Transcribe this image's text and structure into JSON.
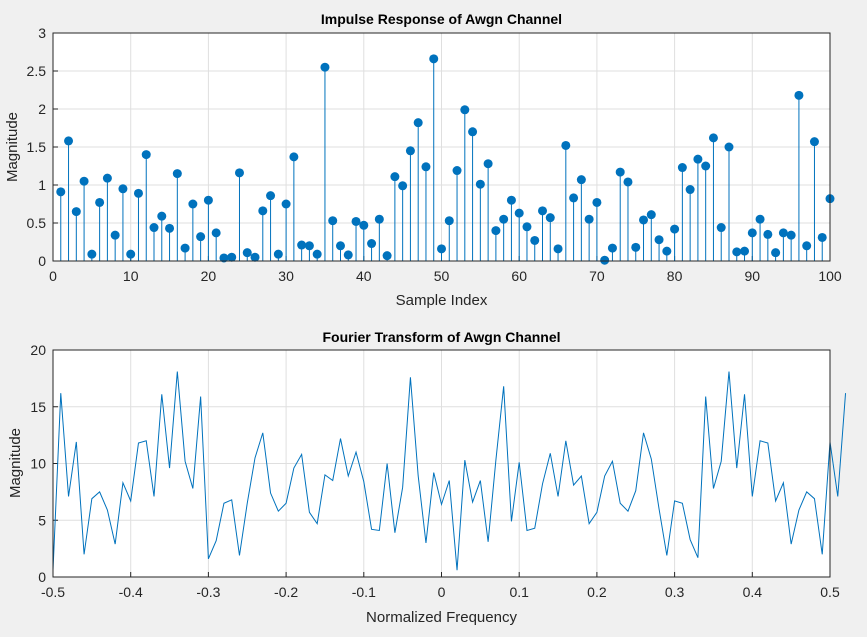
{
  "figure": {
    "background": "#f0f0f0",
    "axes_background": "#ffffff",
    "grid_color": "#dfdfdf",
    "axis_color": "#262626"
  },
  "chart_data": [
    {
      "type": "stem",
      "title": "Impulse Response of Awgn Channel",
      "xlabel": "Sample Index",
      "ylabel": "Magnitude",
      "xlim": [
        0,
        100
      ],
      "ylim": [
        0,
        3
      ],
      "xticks": [
        "0",
        "10",
        "20",
        "30",
        "40",
        "50",
        "60",
        "70",
        "80",
        "90",
        "100"
      ],
      "yticks": [
        "0",
        "0.5",
        "1",
        "1.5",
        "2",
        "2.5",
        "3"
      ],
      "grid": true,
      "color": "#0072bd",
      "x": [
        1,
        2,
        3,
        4,
        5,
        6,
        7,
        8,
        9,
        10,
        11,
        12,
        13,
        14,
        15,
        16,
        17,
        18,
        19,
        20,
        21,
        22,
        23,
        24,
        25,
        26,
        27,
        28,
        29,
        30,
        31,
        32,
        33,
        34,
        35,
        36,
        37,
        38,
        39,
        40,
        41,
        42,
        43,
        44,
        45,
        46,
        47,
        48,
        49,
        50,
        51,
        52,
        53,
        54,
        55,
        56,
        57,
        58,
        59,
        60,
        61,
        62,
        63,
        64,
        65,
        66,
        67,
        68,
        69,
        70,
        71,
        72,
        73,
        74,
        75,
        76,
        77,
        78,
        79,
        80,
        81,
        82,
        83,
        84,
        85,
        86,
        87,
        88,
        89,
        90,
        91,
        92,
        93,
        94,
        95,
        96,
        97,
        98,
        99,
        100
      ],
      "values": [
        0.91,
        1.58,
        0.65,
        1.05,
        0.09,
        0.77,
        1.09,
        0.34,
        0.95,
        0.09,
        0.89,
        1.4,
        0.44,
        0.59,
        0.43,
        1.15,
        0.17,
        0.75,
        0.32,
        0.8,
        0.37,
        0.04,
        0.05,
        1.16,
        0.11,
        0.05,
        0.66,
        0.86,
        0.09,
        0.75,
        1.37,
        0.21,
        0.2,
        0.09,
        2.55,
        0.53,
        0.2,
        0.08,
        0.52,
        0.47,
        0.23,
        0.55,
        0.07,
        1.11,
        0.99,
        1.45,
        1.82,
        1.24,
        2.66,
        0.16,
        0.53,
        1.19,
        1.99,
        1.7,
        1.01,
        1.28,
        0.4,
        0.55,
        0.8,
        0.63,
        0.45,
        0.27,
        0.66,
        0.57,
        0.16,
        1.52,
        0.83,
        1.07,
        0.55,
        0.77,
        0.01,
        0.17,
        1.17,
        1.04,
        0.18,
        0.54,
        0.61,
        0.28,
        0.13,
        0.42,
        1.23,
        0.94,
        1.34,
        1.25,
        1.62,
        0.44,
        1.5,
        0.12,
        0.13,
        0.37,
        0.55,
        0.35,
        0.11,
        0.37,
        0.34,
        2.18,
        0.2,
        1.57,
        0.31,
        0.82
      ]
    },
    {
      "type": "line",
      "title": "Fourier Transform of Awgn Channel",
      "xlabel": "Normalized Frequency",
      "ylabel": "Magnitude",
      "xlim": [
        -0.5,
        0.5
      ],
      "ylim": [
        0,
        20
      ],
      "xticks": [
        "-0.5",
        "-0.4",
        "-0.3",
        "-0.2",
        "-0.1",
        "0",
        "0.1",
        "0.2",
        "0.3",
        "0.4",
        "0.5"
      ],
      "yticks": [
        "0",
        "5",
        "10",
        "15",
        "20"
      ],
      "grid": true,
      "color": "#0072bd",
      "x_start": -0.5,
      "x_step": 0.01,
      "values": [
        0.6,
        16.2,
        7.1,
        11.9,
        2.0,
        6.9,
        7.5,
        5.9,
        2.9,
        8.3,
        6.7,
        11.8,
        12.0,
        7.1,
        16.1,
        9.6,
        18.1,
        10.2,
        7.8,
        15.9,
        1.6,
        3.2,
        6.5,
        6.8,
        1.9,
        6.5,
        10.5,
        12.7,
        7.4,
        5.8,
        6.5,
        9.6,
        10.8,
        5.7,
        4.7,
        9.0,
        8.5,
        12.2,
        8.9,
        11.0,
        8.4,
        4.2,
        4.1,
        10.0,
        3.9,
        7.9,
        17.6,
        8.9,
        3.0,
        9.2,
        6.4,
        8.5,
        0.6,
        10.3,
        6.6,
        8.5,
        3.1,
        10.3,
        16.8,
        4.9,
        10.1,
        4.1,
        4.3,
        8.2,
        10.9,
        7.1,
        12.0,
        8.1,
        8.9,
        4.7,
        5.7,
        8.9,
        10.2,
        6.5,
        5.8,
        7.6,
        12.7,
        10.4,
        6.0,
        1.9,
        6.7,
        6.5,
        3.3,
        1.7,
        15.9,
        7.8,
        10.2,
        18.1,
        9.6,
        16.1,
        7.1,
        12.0,
        11.8,
        6.7,
        8.3,
        2.9,
        5.9,
        7.5,
        6.9,
        2.0,
        11.9,
        7.1,
        16.2
      ]
    }
  ]
}
